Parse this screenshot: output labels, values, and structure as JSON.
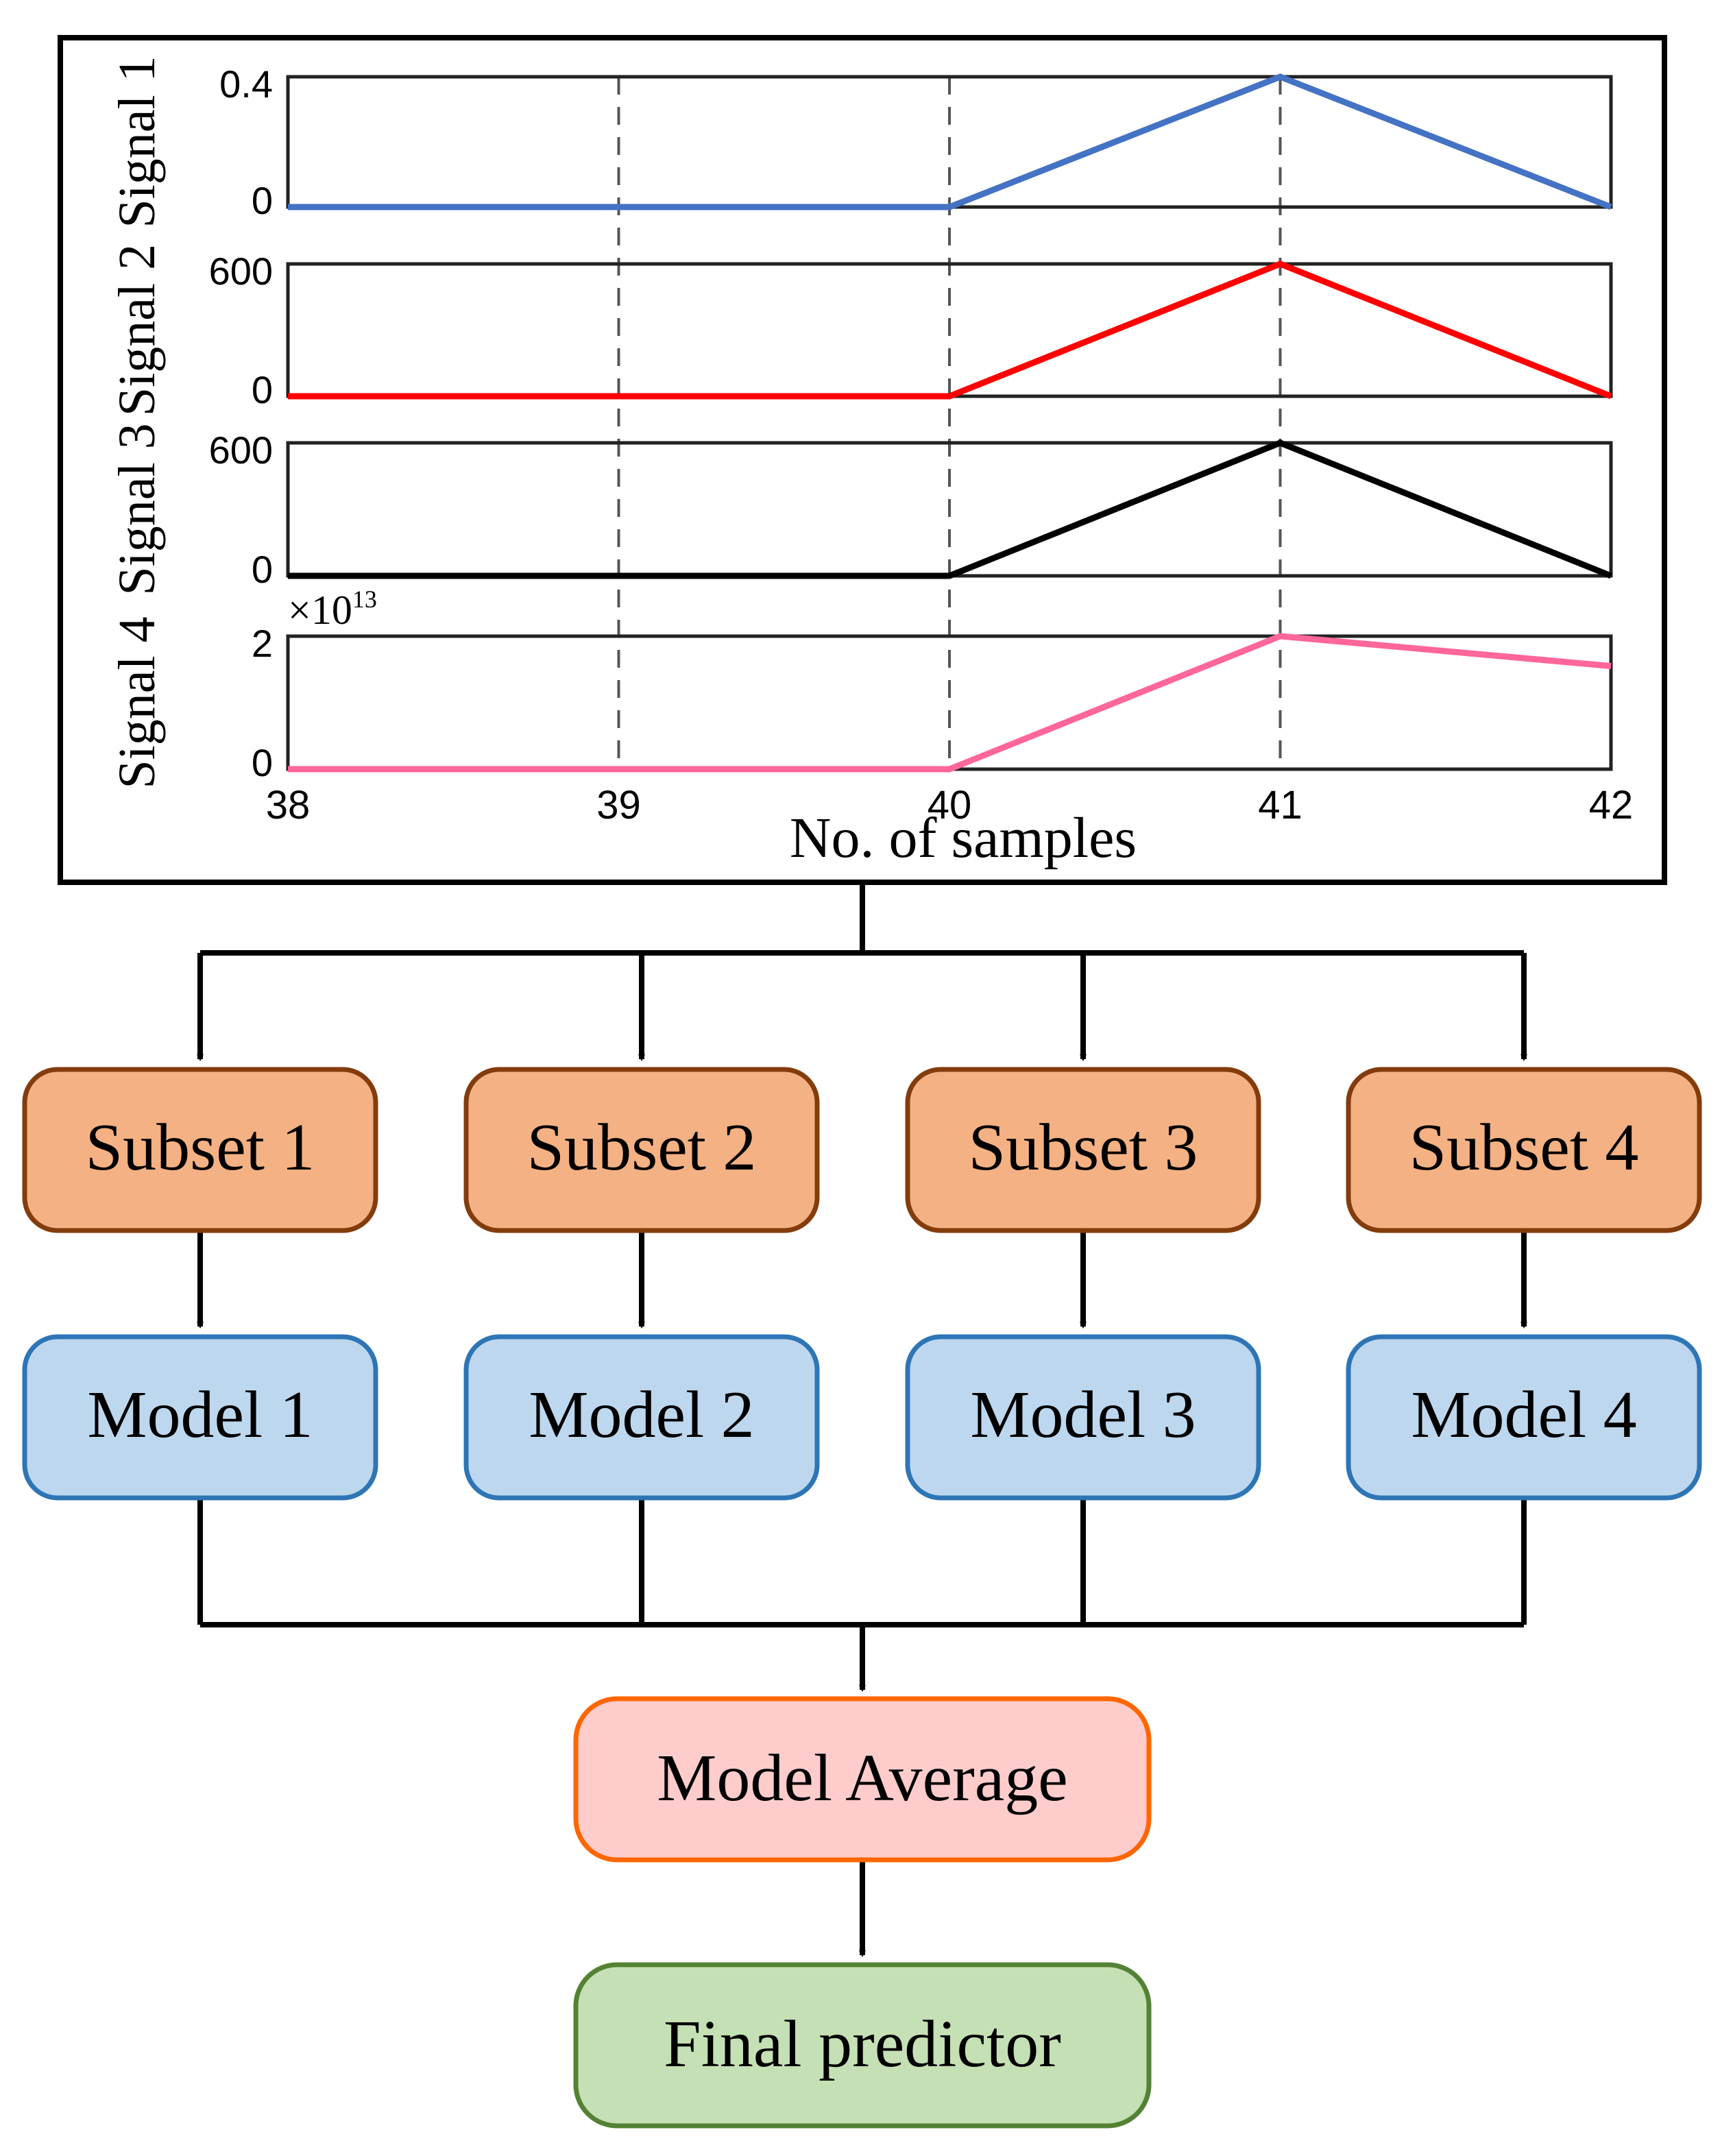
{
  "chart_data": {
    "type": "line",
    "x": [
      38,
      39,
      40,
      41,
      42
    ],
    "x_ticks": [
      "38",
      "39",
      "40",
      "41",
      "42"
    ],
    "xlabel": "No. of samples",
    "xlim": [
      38,
      42
    ],
    "grid": "dashed vertical lines at x = 39, 40, 41",
    "series": [
      {
        "name": "Signal 1",
        "color": "#4472C4",
        "values": [
          0,
          0,
          0,
          0.4,
          0
        ],
        "ylim": [
          0,
          0.4
        ],
        "y_ticks": [
          "0.4",
          "0"
        ]
      },
      {
        "name": "Signal 2",
        "color": "#FF0000",
        "values": [
          0,
          0,
          0,
          600,
          0
        ],
        "ylim": [
          0,
          600
        ],
        "y_ticks": [
          "600",
          "0"
        ]
      },
      {
        "name": "Signal 3",
        "color": "#000000",
        "values": [
          0,
          0,
          0,
          600,
          0
        ],
        "ylim": [
          0,
          600
        ],
        "y_ticks": [
          "600",
          "0"
        ]
      },
      {
        "name": "Signal 4",
        "color": "#FF6699",
        "values": [
          0,
          0,
          0,
          2,
          1.55
        ],
        "ylim": [
          0,
          2
        ],
        "y_ticks": [
          "2",
          "0"
        ],
        "exponent_base": "×10",
        "exponent_power": "13"
      }
    ]
  },
  "flow": {
    "subsets": [
      "Subset 1",
      "Subset 2",
      "Subset 3",
      "Subset 4"
    ],
    "models": [
      "Model 1",
      "Model 2",
      "Model 3",
      "Model 4"
    ],
    "average": "Model Average",
    "final": "Final predictor"
  },
  "colors": {
    "subset_fill": "#F4B183",
    "subset_stroke": "#843C0C",
    "model_fill": "#BDD7EE",
    "model_stroke": "#2E75B6",
    "average_fill": "#FFCCCC",
    "average_stroke": "#FF6600",
    "final_fill": "#C5E0B4",
    "final_stroke": "#548235"
  }
}
